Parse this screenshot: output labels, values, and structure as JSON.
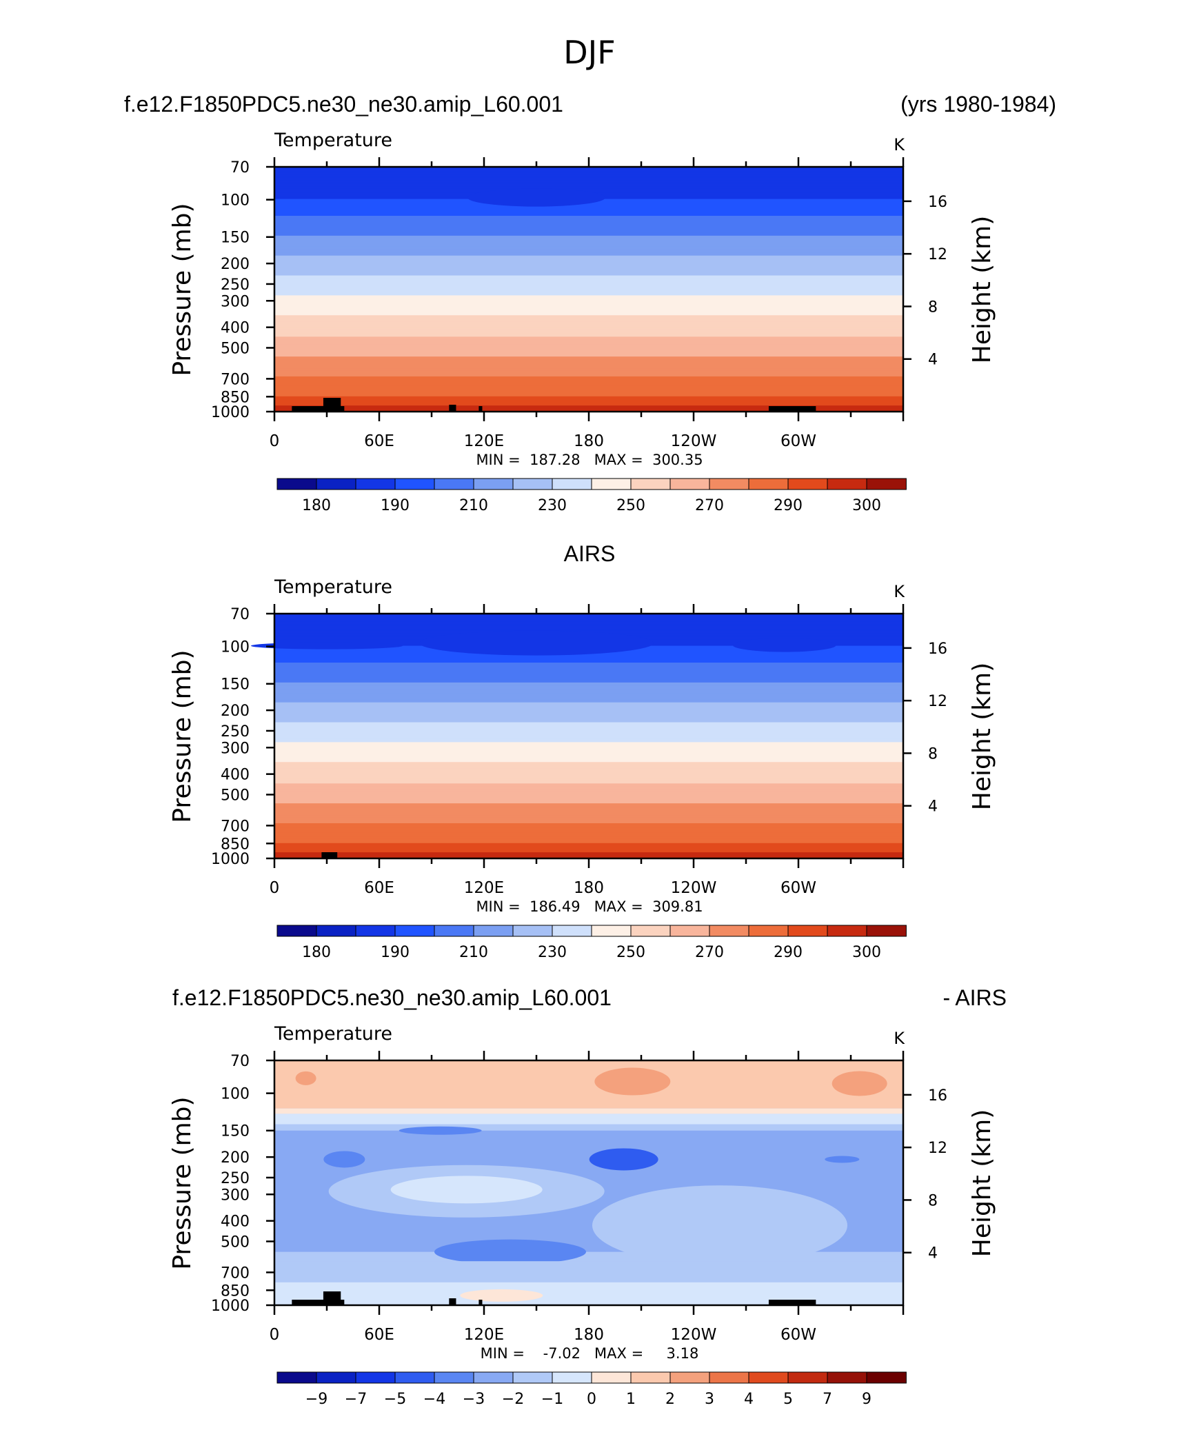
{
  "main_title": "DJF",
  "colors": {
    "temperature": [
      "#0a0a8c",
      "#0a22c4",
      "#1336e6",
      "#2054ff",
      "#4a78f5",
      "#7b9ff2",
      "#a6c0f5",
      "#cfe0fb",
      "#fdf0e6",
      "#fbd3bf",
      "#f8b59c",
      "#f28b62",
      "#ed6d3a",
      "#e24a1c",
      "#c72a10",
      "#9a1208",
      "#6b0000"
    ],
    "difference": [
      "#0a0a8c",
      "#0a22c4",
      "#1336e6",
      "#2f5cf0",
      "#5a86f2",
      "#88a9f3",
      "#b0c9f7",
      "#d6e6fc",
      "#fde6d8",
      "#fbc9ae",
      "#f4a17d",
      "#ec7548",
      "#e04a1e",
      "#c22a10",
      "#951108",
      "#6b0000"
    ]
  },
  "chart_data": [
    {
      "type": "heatmap",
      "title_left": "f.e12.F1850PDC5.ne30_ne30.amip_L60.001",
      "title_right": "(yrs 1980-1984)",
      "variable_label": "Temperature",
      "units_label": "K",
      "ylabel": "Pressure (mb)",
      "ylabel_right": "Height (km)",
      "x_ticks": [
        "0",
        "60E",
        "120E",
        "180",
        "120W",
        "60W"
      ],
      "y_ticks": [
        "70",
        "100",
        "150",
        "200",
        "250",
        "300",
        "400",
        "500",
        "700",
        "850",
        "1000"
      ],
      "y_right_ticks": [
        "16",
        "12",
        "8",
        "4"
      ],
      "min_max_label": "MIN =  187.28   MAX =  300.35",
      "min": 187.28,
      "max": 300.35,
      "colorbar_labels": [
        "180",
        "190",
        "210",
        "230",
        "250",
        "270",
        "290",
        "300"
      ]
    },
    {
      "type": "heatmap",
      "title_center": "AIRS",
      "variable_label": "Temperature",
      "units_label": "K",
      "ylabel": "Pressure (mb)",
      "ylabel_right": "Height (km)",
      "x_ticks": [
        "0",
        "60E",
        "120E",
        "180",
        "120W",
        "60W"
      ],
      "y_ticks": [
        "70",
        "100",
        "150",
        "200",
        "250",
        "300",
        "400",
        "500",
        "700",
        "850",
        "1000"
      ],
      "y_right_ticks": [
        "16",
        "12",
        "8",
        "4"
      ],
      "min_max_label": "MIN =  186.49   MAX =  309.81",
      "min": 186.49,
      "max": 309.81,
      "colorbar_labels": [
        "180",
        "190",
        "210",
        "230",
        "250",
        "270",
        "290",
        "300"
      ]
    },
    {
      "type": "heatmap",
      "title_left": "f.e12.F1850PDC5.ne30_ne30.amip_L60.001",
      "title_right": "- AIRS",
      "variable_label": "Temperature",
      "units_label": "K",
      "ylabel": "Pressure (mb)",
      "ylabel_right": "Height (km)",
      "x_ticks": [
        "0",
        "60E",
        "120E",
        "180",
        "120W",
        "60W"
      ],
      "y_ticks": [
        "70",
        "100",
        "150",
        "200",
        "250",
        "300",
        "400",
        "500",
        "700",
        "850",
        "1000"
      ],
      "y_right_ticks": [
        "16",
        "12",
        "8",
        "4"
      ],
      "min_max_label": "MIN =    -7.02   MAX =     3.18",
      "min": -7.02,
      "max": 3.18,
      "colorbar_labels": [
        "-9",
        "-7",
        "-5",
        "-4",
        "-3",
        "-2",
        "-1",
        "0",
        "1",
        "2",
        "3",
        "4",
        "5",
        "7",
        "9"
      ]
    }
  ]
}
